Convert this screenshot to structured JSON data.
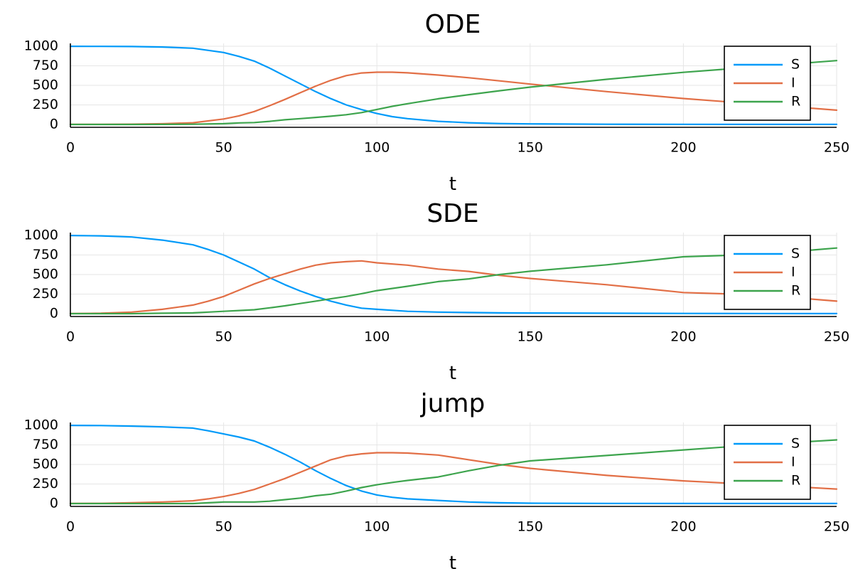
{
  "colors": {
    "S": "#009af9",
    "I": "#e26f46",
    "R": "#3da44d"
  },
  "chart_data": [
    {
      "type": "line",
      "title": "ODE",
      "xlabel": "t",
      "ylabel": "",
      "xlim": [
        0,
        250
      ],
      "ylim": [
        0,
        1000
      ],
      "xticks": [
        0,
        50,
        100,
        150,
        200,
        250
      ],
      "yticks": [
        0,
        250,
        500,
        750,
        1000
      ],
      "grid": true,
      "legend": "top-right",
      "series": [
        {
          "name": "S",
          "x": [
            0,
            10,
            20,
            30,
            40,
            50,
            55,
            60,
            65,
            70,
            75,
            80,
            85,
            90,
            95,
            100,
            105,
            110,
            120,
            130,
            140,
            150,
            175,
            200,
            225,
            250
          ],
          "y": [
            999,
            998,
            996,
            990,
            975,
            920,
            870,
            810,
            720,
            620,
            520,
            420,
            330,
            250,
            190,
            140,
            100,
            75,
            40,
            22,
            12,
            7,
            3,
            2,
            1,
            1
          ]
        },
        {
          "name": "I",
          "x": [
            0,
            10,
            20,
            30,
            40,
            50,
            55,
            60,
            65,
            70,
            75,
            80,
            85,
            90,
            95,
            100,
            105,
            110,
            120,
            130,
            140,
            150,
            175,
            200,
            225,
            250
          ],
          "y": [
            1,
            2,
            4,
            9,
            22,
            70,
            110,
            165,
            240,
            320,
            405,
            490,
            565,
            625,
            658,
            668,
            668,
            660,
            632,
            597,
            557,
            516,
            420,
            332,
            258,
            183
          ]
        },
        {
          "name": "R",
          "x": [
            0,
            10,
            20,
            30,
            40,
            50,
            55,
            60,
            65,
            70,
            75,
            80,
            85,
            90,
            95,
            100,
            105,
            110,
            120,
            130,
            140,
            150,
            175,
            200,
            225,
            250
          ],
          "y": [
            0,
            0,
            0,
            1,
            3,
            10,
            20,
            25,
            40,
            60,
            75,
            90,
            105,
            125,
            152,
            192,
            232,
            265,
            328,
            381,
            431,
            477,
            577,
            666,
            741,
            816
          ]
        }
      ]
    },
    {
      "type": "line",
      "title": "SDE",
      "xlabel": "t",
      "ylabel": "",
      "xlim": [
        0,
        250
      ],
      "ylim": [
        0,
        1000
      ],
      "xticks": [
        0,
        50,
        100,
        150,
        200,
        250
      ],
      "yticks": [
        0,
        250,
        500,
        750,
        1000
      ],
      "grid": true,
      "legend": "top-right",
      "series": [
        {
          "name": "S",
          "x": [
            0,
            10,
            20,
            30,
            40,
            45,
            50,
            55,
            60,
            65,
            70,
            75,
            80,
            85,
            90,
            95,
            100,
            110,
            120,
            130,
            140,
            150,
            175,
            200,
            225,
            250
          ],
          "y": [
            999,
            995,
            980,
            940,
            880,
            820,
            750,
            660,
            570,
            460,
            370,
            290,
            220,
            160,
            110,
            70,
            55,
            30,
            20,
            15,
            10,
            8,
            5,
            3,
            2,
            1
          ]
        },
        {
          "name": "I",
          "x": [
            0,
            10,
            20,
            30,
            40,
            45,
            50,
            55,
            60,
            65,
            70,
            75,
            80,
            85,
            90,
            95,
            100,
            110,
            120,
            130,
            140,
            150,
            175,
            200,
            225,
            250
          ],
          "y": [
            1,
            5,
            20,
            55,
            110,
            160,
            220,
            300,
            380,
            450,
            510,
            570,
            620,
            650,
            665,
            675,
            650,
            620,
            570,
            540,
            490,
            450,
            370,
            270,
            240,
            160
          ]
        },
        {
          "name": "R",
          "x": [
            0,
            10,
            20,
            30,
            40,
            45,
            50,
            55,
            60,
            65,
            70,
            75,
            80,
            85,
            90,
            95,
            100,
            110,
            120,
            130,
            140,
            150,
            175,
            200,
            225,
            250
          ],
          "y": [
            0,
            0,
            0,
            5,
            10,
            20,
            30,
            40,
            50,
            75,
            100,
            130,
            160,
            190,
            220,
            255,
            295,
            350,
            410,
            445,
            500,
            542,
            625,
            727,
            758,
            839
          ]
        }
      ]
    },
    {
      "type": "line",
      "title": "jump",
      "xlabel": "t",
      "ylabel": "",
      "xlim": [
        0,
        250
      ],
      "ylim": [
        0,
        1000
      ],
      "xticks": [
        0,
        50,
        100,
        150,
        200,
        250
      ],
      "yticks": [
        0,
        250,
        500,
        750,
        1000
      ],
      "grid": true,
      "legend": "top-right",
      "series": [
        {
          "name": "S",
          "x": [
            0,
            10,
            20,
            30,
            40,
            45,
            50,
            55,
            60,
            65,
            70,
            75,
            80,
            85,
            90,
            95,
            100,
            105,
            110,
            120,
            130,
            140,
            150,
            175,
            200,
            225,
            250
          ],
          "y": [
            999,
            997,
            990,
            980,
            965,
            930,
            890,
            850,
            800,
            720,
            630,
            530,
            420,
            320,
            230,
            160,
            110,
            80,
            60,
            40,
            20,
            10,
            5,
            2,
            1,
            1,
            1
          ]
        },
        {
          "name": "I",
          "x": [
            0,
            10,
            20,
            30,
            40,
            45,
            50,
            55,
            60,
            65,
            70,
            75,
            80,
            85,
            90,
            95,
            100,
            105,
            110,
            120,
            130,
            140,
            150,
            175,
            200,
            225,
            250
          ],
          "y": [
            1,
            3,
            10,
            20,
            35,
            60,
            90,
            130,
            180,
            250,
            320,
            400,
            480,
            560,
            610,
            635,
            650,
            650,
            645,
            620,
            560,
            500,
            450,
            360,
            290,
            240,
            185
          ]
        },
        {
          "name": "R",
          "x": [
            0,
            10,
            20,
            30,
            40,
            45,
            50,
            55,
            60,
            65,
            70,
            75,
            80,
            85,
            90,
            95,
            100,
            105,
            110,
            120,
            130,
            140,
            150,
            175,
            200,
            225,
            250
          ],
          "y": [
            0,
            0,
            0,
            0,
            0,
            10,
            20,
            20,
            20,
            30,
            50,
            70,
            100,
            120,
            160,
            205,
            240,
            270,
            295,
            340,
            420,
            490,
            545,
            615,
            685,
            755,
            814
          ]
        }
      ]
    }
  ]
}
